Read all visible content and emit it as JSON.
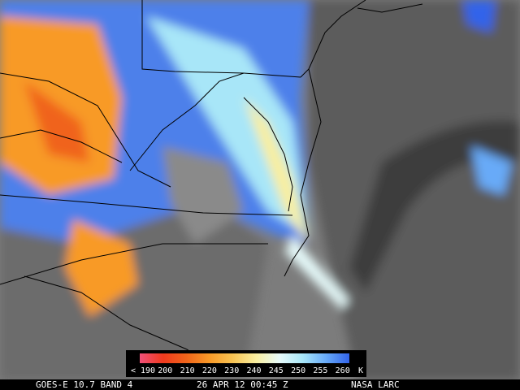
{
  "colorbar": {
    "labels": [
      "< 190",
      "200",
      "210",
      "220",
      "230",
      "240",
      "245",
      "250",
      "255",
      "260"
    ],
    "unit": "K",
    "colors": [
      "#f0507a",
      "#f03a1e",
      "#f0641a",
      "#f89a28",
      "#f8c454",
      "#f8eea0",
      "#e6fafa",
      "#a8e6f8",
      "#68aaf8",
      "#3264ea"
    ]
  },
  "caption": {
    "sensor": "GOES-E 10.7 BAND 4",
    "time": "26 APR 12 00:45 Z",
    "source": "NASA LARC"
  }
}
